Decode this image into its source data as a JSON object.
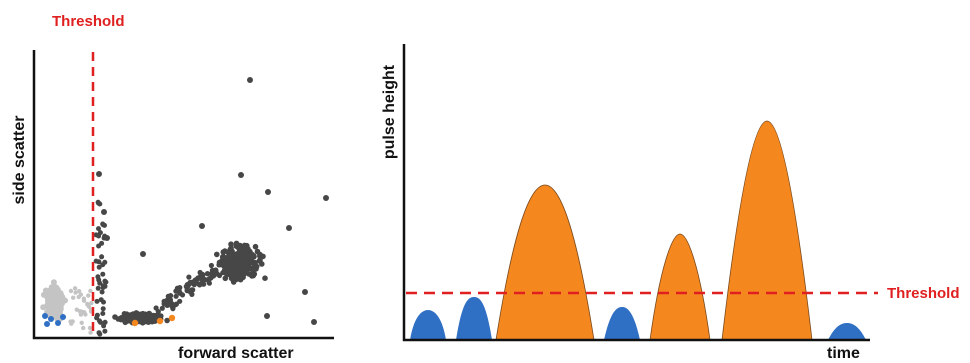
{
  "scatter_panel": {
    "threshold_label": "Threshold",
    "y_axis_label": "side scatter",
    "x_axis_label": "forward scatter"
  },
  "pulse_panel": {
    "y_axis_label": "pulse height",
    "x_axis_label": "time",
    "threshold_label": "Threshold"
  },
  "colors": {
    "threshold": "#e02020",
    "small_pulse": "#2f6fc4",
    "large_pulse": "#f5871f",
    "dark_events": "#474747",
    "light_events": "#c4c4c4",
    "axis": "#111111"
  }
}
